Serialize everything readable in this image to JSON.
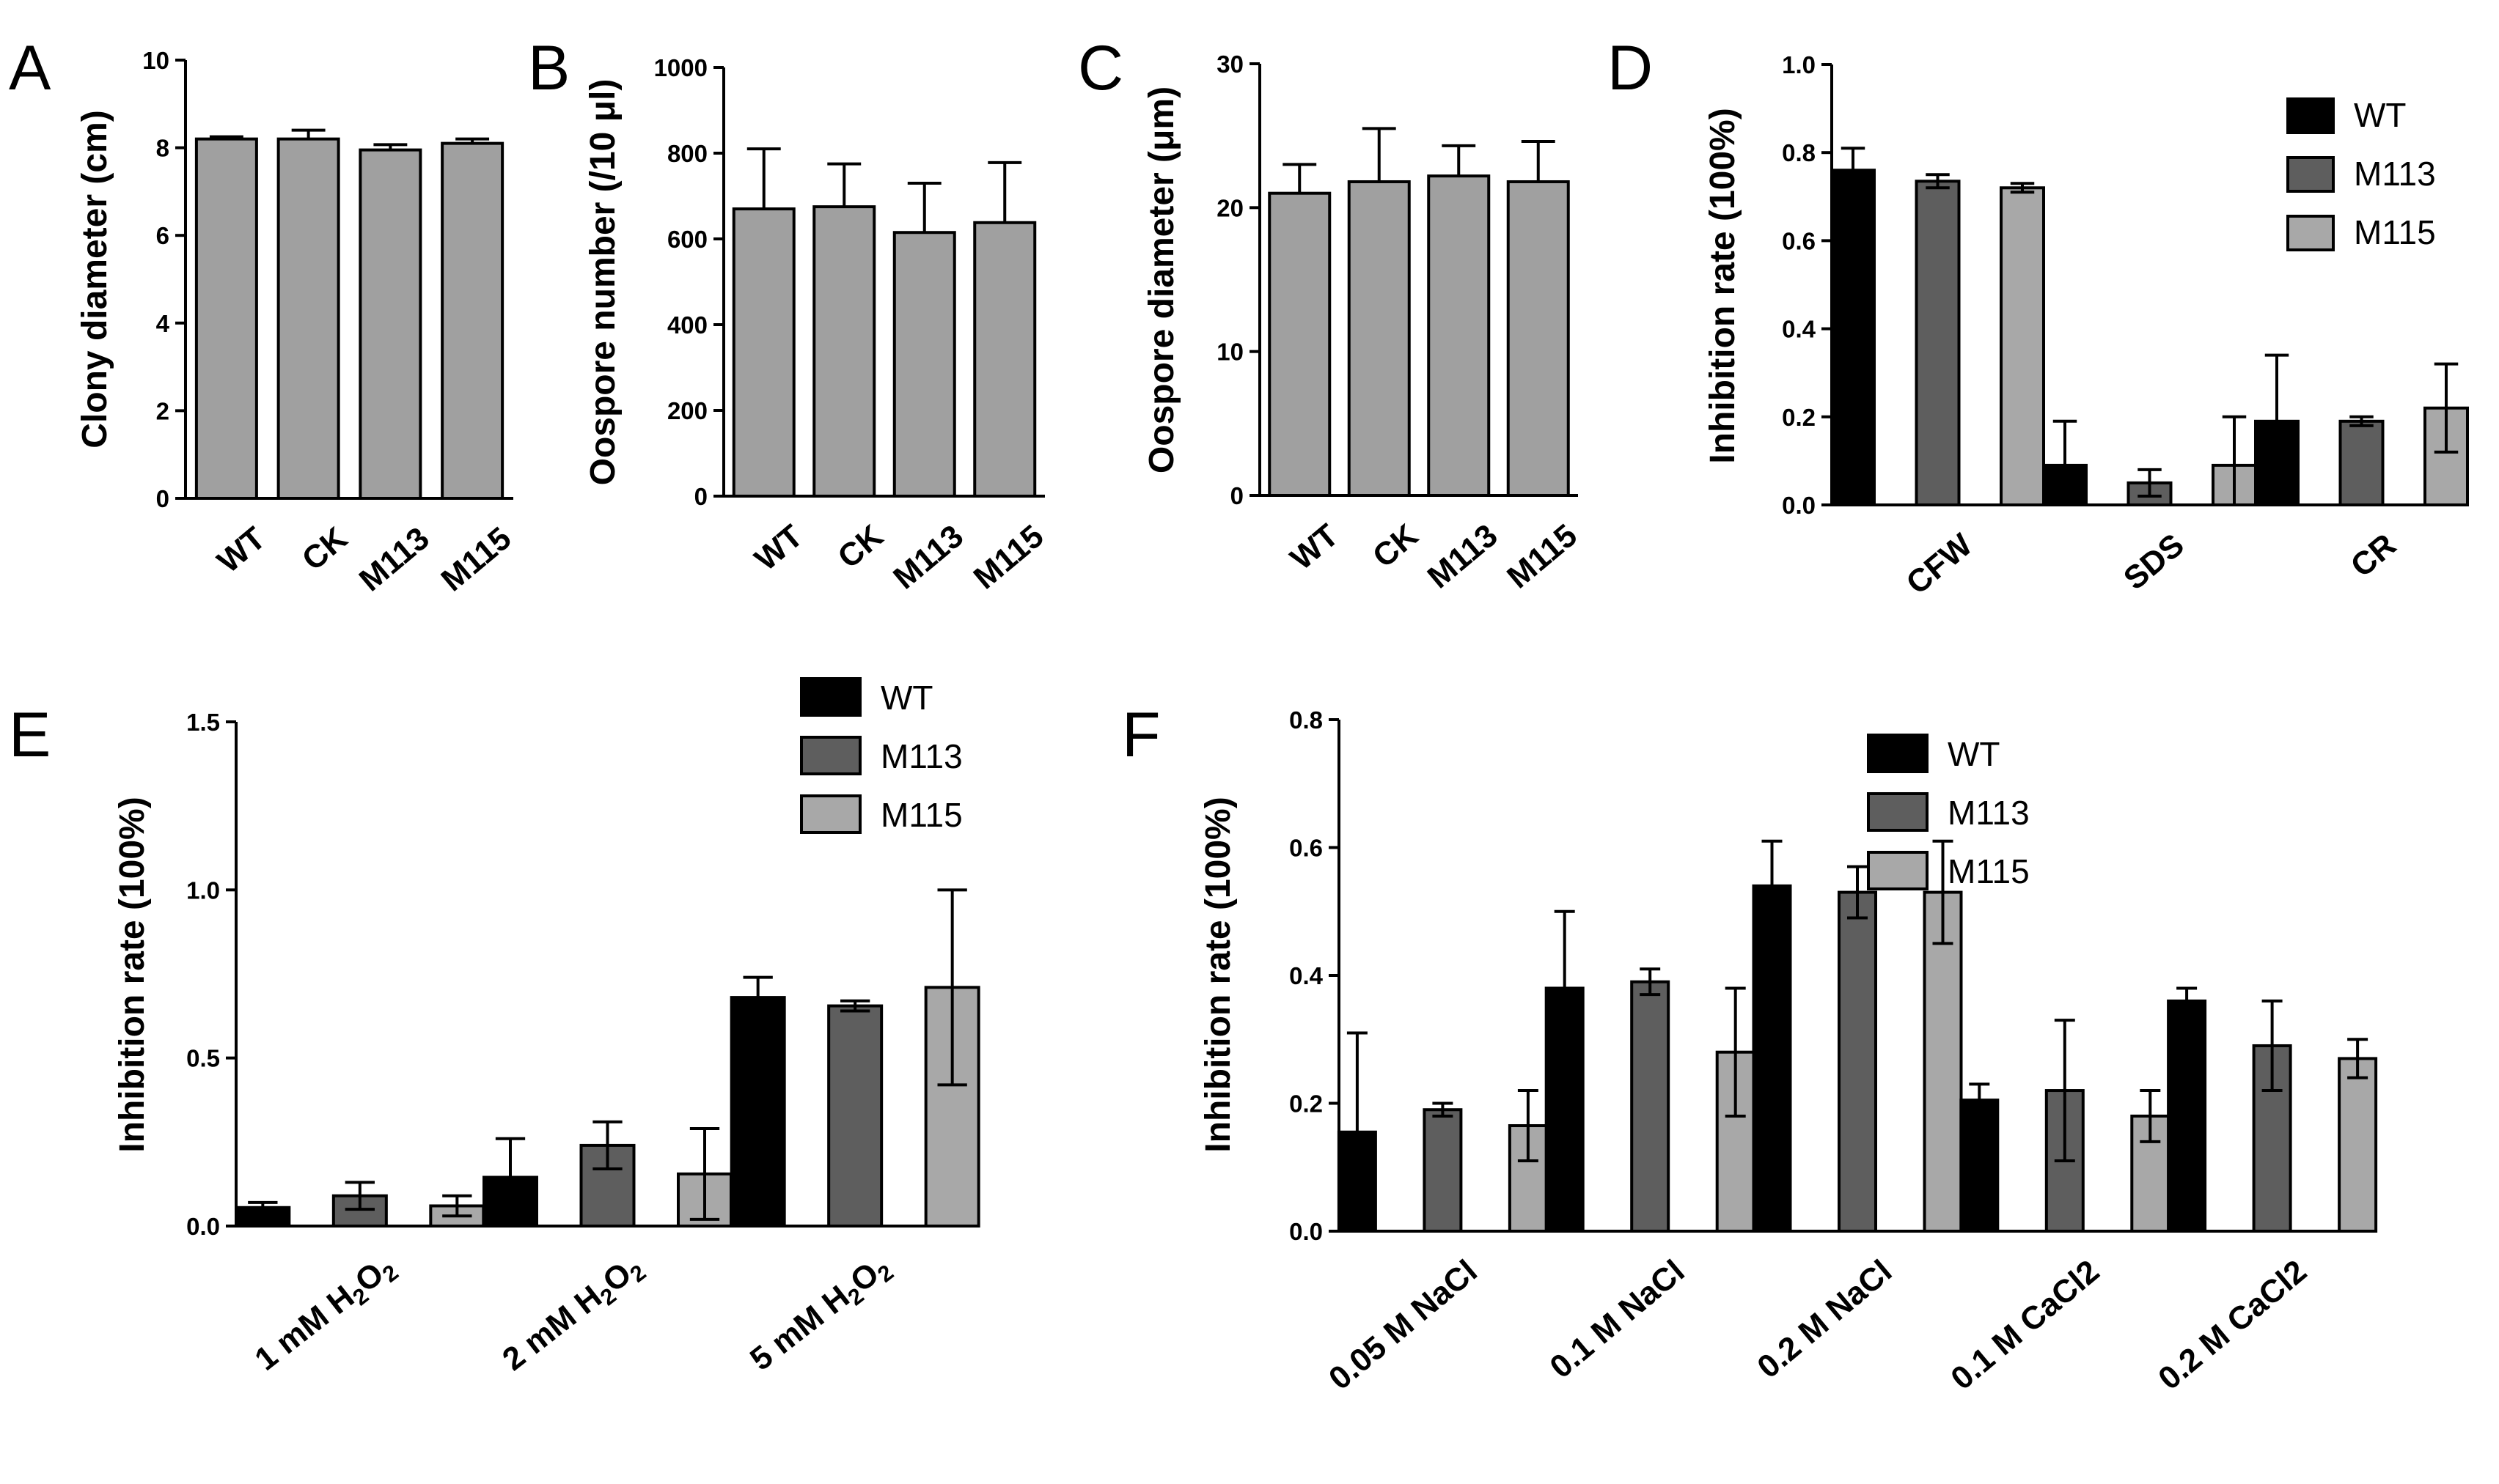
{
  "figure": {
    "colors": {
      "single": "#a0a0a0",
      "WT": "#000000",
      "M113": "#5e5e5e",
      "M115": "#a8a8a8",
      "stroke": "#000000"
    }
  },
  "chart_data": [
    {
      "panel": "A",
      "type": "bar",
      "title": "",
      "xlabel": "",
      "ylabel": "Clony diameter (cm)",
      "ylim": [
        0,
        10
      ],
      "yticks": [
        "0",
        "2",
        "4",
        "6",
        "8",
        "10"
      ],
      "ytick_values": [
        0,
        2,
        4,
        6,
        8,
        10
      ],
      "categories": [
        "WT",
        "CK",
        "M113",
        "M115"
      ],
      "series": [
        {
          "name": "",
          "color_key": "single",
          "values": [
            8.2,
            8.2,
            7.95,
            8.1
          ],
          "errors": [
            0.05,
            0.2,
            0.12,
            0.1
          ]
        }
      ]
    },
    {
      "panel": "B",
      "type": "bar",
      "title": "",
      "xlabel": "",
      "ylabel": "Oospore number (/10 μl)",
      "ylim": [
        0,
        1000
      ],
      "yticks": [
        "0",
        "200",
        "400",
        "600",
        "800",
        "1000"
      ],
      "ytick_values": [
        0,
        200,
        400,
        600,
        800,
        1000
      ],
      "categories": [
        "WT",
        "CK",
        "M113",
        "M115"
      ],
      "series": [
        {
          "name": "",
          "color_key": "single",
          "values": [
            670,
            675,
            615,
            638
          ],
          "errors": [
            140,
            100,
            115,
            140
          ]
        }
      ]
    },
    {
      "panel": "C",
      "type": "bar",
      "title": "",
      "xlabel": "",
      "ylabel": "Oospore diameter (μm)",
      "ylim": [
        0,
        30
      ],
      "yticks": [
        "0",
        "10",
        "20",
        "30"
      ],
      "ytick_values": [
        0,
        10,
        20,
        30
      ],
      "categories": [
        "WT",
        "CK",
        "M113",
        "M115"
      ],
      "series": [
        {
          "name": "",
          "color_key": "single",
          "values": [
            21,
            21.8,
            22.2,
            21.8
          ],
          "errors": [
            2,
            3.7,
            2.1,
            2.8
          ]
        }
      ]
    },
    {
      "panel": "D",
      "type": "bar",
      "title": "",
      "xlabel": "",
      "ylabel": "Inhibition rate (100%)",
      "ylim": [
        0,
        1.0
      ],
      "yticks": [
        "0.0",
        "0.2",
        "0.4",
        "0.6",
        "0.8",
        "1.0"
      ],
      "ytick_values": [
        0,
        0.2,
        0.4,
        0.6,
        0.8,
        1.0
      ],
      "categories": [
        "CFW",
        "SDS",
        "CR"
      ],
      "legend_position": "top-right",
      "series": [
        {
          "name": "WT",
          "color_key": "WT",
          "values": [
            0.76,
            0.09,
            0.19
          ],
          "errors": [
            0.05,
            0.1,
            0.15
          ]
        },
        {
          "name": "M113",
          "color_key": "M113",
          "values": [
            0.735,
            0.05,
            0.19
          ],
          "errors": [
            0.015,
            0.03,
            0.01
          ]
        },
        {
          "name": "M115",
          "color_key": "M115",
          "values": [
            0.72,
            0.09,
            0.22
          ],
          "errors": [
            0.01,
            0.11,
            0.1
          ]
        }
      ]
    },
    {
      "panel": "E",
      "type": "bar",
      "title": "",
      "xlabel": "",
      "ylabel": "Inhibition rate (100%)",
      "ylim": [
        0,
        1.5
      ],
      "yticks": [
        "0.0",
        "0.5",
        "1.0",
        "1.5"
      ],
      "ytick_values": [
        0,
        0.5,
        1.0,
        1.5
      ],
      "categories": [
        "1 mM H₂O₂",
        "2 mM H₂O₂",
        "5 mM H₂O₂"
      ],
      "legend_position": "top-right",
      "series": [
        {
          "name": "WT",
          "color_key": "WT",
          "values": [
            0.055,
            0.145,
            0.68
          ],
          "errors": [
            0.015,
            0.115,
            0.06
          ]
        },
        {
          "name": "M113",
          "color_key": "M113",
          "values": [
            0.09,
            0.24,
            0.655
          ],
          "errors": [
            0.04,
            0.07,
            0.015
          ]
        },
        {
          "name": "M115",
          "color_key": "M115",
          "values": [
            0.06,
            0.155,
            0.71
          ],
          "errors": [
            0.03,
            0.135,
            0.29
          ]
        }
      ]
    },
    {
      "panel": "F",
      "type": "bar",
      "title": "",
      "xlabel": "",
      "ylabel": "Inhibition rate (100%)",
      "ylim": [
        0,
        0.8
      ],
      "yticks": [
        "0.0",
        "0.2",
        "0.4",
        "0.6",
        "0.8"
      ],
      "ytick_values": [
        0,
        0.2,
        0.4,
        0.6,
        0.8
      ],
      "categories": [
        "0.05 M NaCl",
        "0.1 M NaCl",
        "0.2 M NaCl",
        "0.1 M CaCl2",
        "0.2 M CaCl2"
      ],
      "legend_position": "top-right",
      "series": [
        {
          "name": "WT",
          "color_key": "WT",
          "values": [
            0.155,
            0.38,
            0.54,
            0.205,
            0.36
          ],
          "errors": [
            0.155,
            0.12,
            0.07,
            0.025,
            0.02
          ]
        },
        {
          "name": "M113",
          "color_key": "M113",
          "values": [
            0.19,
            0.39,
            0.53,
            0.22,
            0.29
          ],
          "errors": [
            0.01,
            0.02,
            0.04,
            0.11,
            0.07
          ]
        },
        {
          "name": "M115",
          "color_key": "M115",
          "values": [
            0.165,
            0.28,
            0.53,
            0.18,
            0.27
          ],
          "errors": [
            0.055,
            0.1,
            0.08,
            0.04,
            0.03
          ]
        }
      ]
    }
  ]
}
